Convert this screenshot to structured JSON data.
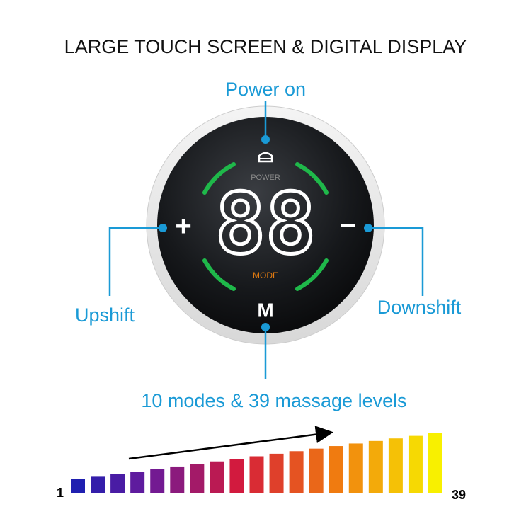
{
  "header": {
    "title": "LARGE TOUCH SCREEN & DIGITAL DISPLAY"
  },
  "display": {
    "power_label": "POWER",
    "digits": "88",
    "mode_label": "MODE",
    "plus": "+",
    "minus": "−",
    "mode_button": "M"
  },
  "callouts": {
    "power": "Power on",
    "upshift": "Upshift",
    "downshift": "Downshift",
    "modes": "10 modes & 39 massage levels"
  },
  "scale": {
    "min_label": "1",
    "max_label": "39"
  }
}
